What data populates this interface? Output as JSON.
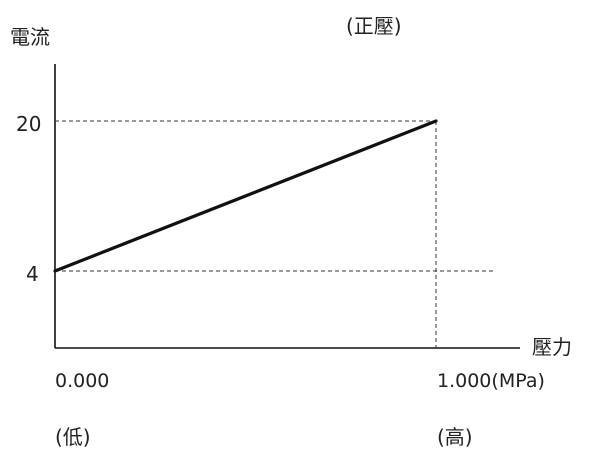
{
  "chart_data": {
    "type": "line",
    "title": "",
    "ylabel": "電流",
    "xlabel": "壓力",
    "x_unit": "(MPa)",
    "series": [
      {
        "x": [
          0.0,
          1.0
        ],
        "y": [
          4,
          20
        ]
      }
    ],
    "y_ticks": [
      {
        "value": 20,
        "label": "20"
      },
      {
        "value": 4,
        "label": "4"
      }
    ],
    "x_ticks": [
      {
        "value": 0.0,
        "label": "0.000",
        "sublabel": "(低)"
      },
      {
        "value": 1.0,
        "label": "1.000",
        "sublabel": "(高)"
      }
    ],
    "annotation": "(正壓)",
    "reference_lines": true,
    "colors": {
      "line": "#111111",
      "axis": "#111111",
      "guide": "#333333",
      "text": "#222222"
    }
  }
}
